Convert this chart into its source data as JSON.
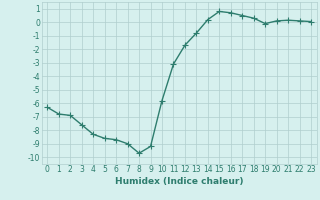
{
  "title": "",
  "xlabel": "Humidex (Indice chaleur)",
  "ylabel": "",
  "x": [
    0,
    1,
    2,
    3,
    4,
    5,
    6,
    7,
    8,
    9,
    10,
    11,
    12,
    13,
    14,
    15,
    16,
    17,
    18,
    19,
    20,
    21,
    22,
    23
  ],
  "y": [
    -6.3,
    -6.8,
    -6.9,
    -7.6,
    -8.3,
    -8.6,
    -8.7,
    -9.0,
    -9.7,
    -9.2,
    -5.8,
    -3.1,
    -1.7,
    -0.8,
    0.2,
    0.8,
    0.7,
    0.5,
    0.3,
    -0.1,
    0.1,
    0.15,
    0.1,
    0.05
  ],
  "line_color": "#2e7d6e",
  "marker": "+",
  "markersize": 4,
  "linewidth": 1.0,
  "bg_color": "#d6f0ee",
  "grid_color": "#b0cece",
  "ylim": [
    -10.5,
    1.5
  ],
  "xlim": [
    -0.5,
    23.5
  ],
  "yticks": [
    1,
    0,
    -1,
    -2,
    -3,
    -4,
    -5,
    -6,
    -7,
    -8,
    -9,
    -10
  ],
  "xticks": [
    0,
    1,
    2,
    3,
    4,
    5,
    6,
    7,
    8,
    9,
    10,
    11,
    12,
    13,
    14,
    15,
    16,
    17,
    18,
    19,
    20,
    21,
    22,
    23
  ],
  "xtick_labels": [
    "0",
    "1",
    "2",
    "3",
    "4",
    "5",
    "6",
    "7",
    "8",
    "9",
    "10",
    "11",
    "12",
    "13",
    "14",
    "15",
    "16",
    "17",
    "18",
    "19",
    "20",
    "21",
    "22",
    "23"
  ],
  "label_fontsize": 6.5,
  "tick_fontsize": 5.5
}
